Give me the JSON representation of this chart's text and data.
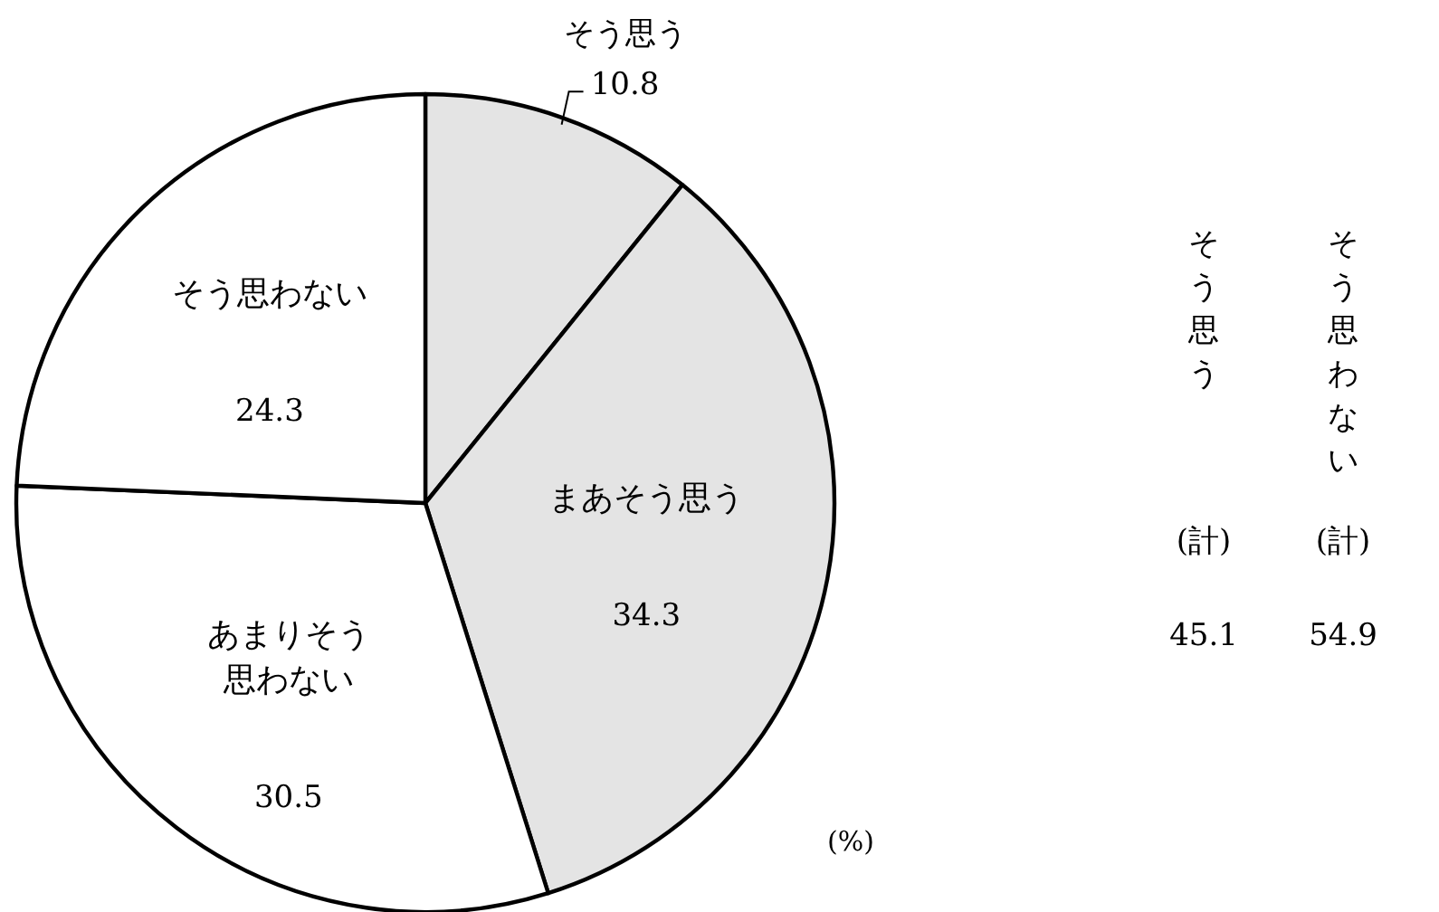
{
  "chart_data": {
    "type": "pie",
    "categories": [
      "そう思う",
      "まあそう思う",
      "あまりそう思わない",
      "そう思わない"
    ],
    "values": [
      10.8,
      34.3,
      30.5,
      24.3
    ],
    "colors": [
      "#e4e4e4",
      "#e4e4e4",
      "#ffffff",
      "#ffffff"
    ],
    "data_labels": true,
    "annotations": [
      "そう思う",
      "(計)",
      "45.1",
      "そう思わない",
      "(計)",
      "54.9",
      "(%)"
    ]
  }
}
